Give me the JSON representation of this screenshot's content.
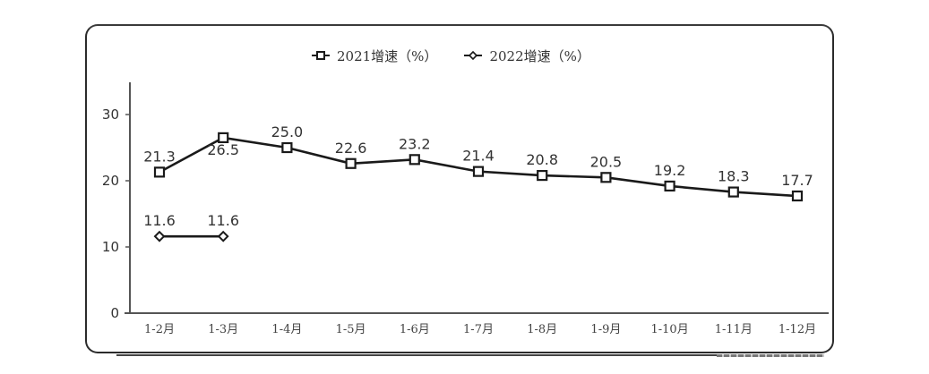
{
  "legend": {
    "series_2021": "2021增速（%）",
    "series_2022": "2022增速（%）"
  },
  "y_ticks": [
    "0",
    "10",
    "20",
    "30"
  ],
  "x_ticks": [
    "1-2月",
    "1-3月",
    "1-4月",
    "1-5月",
    "1-6月",
    "1-7月",
    "1-8月",
    "1-9月",
    "1-10月",
    "1-11月",
    "1-12月"
  ],
  "labels_2021": [
    "21.3",
    "26.5",
    "25.0",
    "22.6",
    "23.2",
    "21.4",
    "20.8",
    "20.5",
    "19.2",
    "18.3",
    "17.7"
  ],
  "labels_2022": [
    "11.6",
    "11.6"
  ],
  "colors": {
    "line": "#1a1a1a",
    "axis": "#555555",
    "text": "#333333"
  },
  "chart_data": {
    "type": "line",
    "title": "",
    "xlabel": "",
    "ylabel": "",
    "categories": [
      "1-2月",
      "1-3月",
      "1-4月",
      "1-5月",
      "1-6月",
      "1-7月",
      "1-8月",
      "1-9月",
      "1-10月",
      "1-11月",
      "1-12月"
    ],
    "series": [
      {
        "name": "2021增速（%）",
        "marker": "square",
        "values": [
          21.3,
          26.5,
          25.0,
          22.6,
          23.2,
          21.4,
          20.8,
          20.5,
          19.2,
          18.3,
          17.7
        ]
      },
      {
        "name": "2022增速（%）",
        "marker": "diamond",
        "values": [
          11.6,
          11.6,
          null,
          null,
          null,
          null,
          null,
          null,
          null,
          null,
          null
        ]
      }
    ],
    "ylim": [
      0,
      35
    ],
    "yticks": [
      0,
      10,
      20,
      30
    ],
    "grid": false,
    "legend_position": "top"
  }
}
